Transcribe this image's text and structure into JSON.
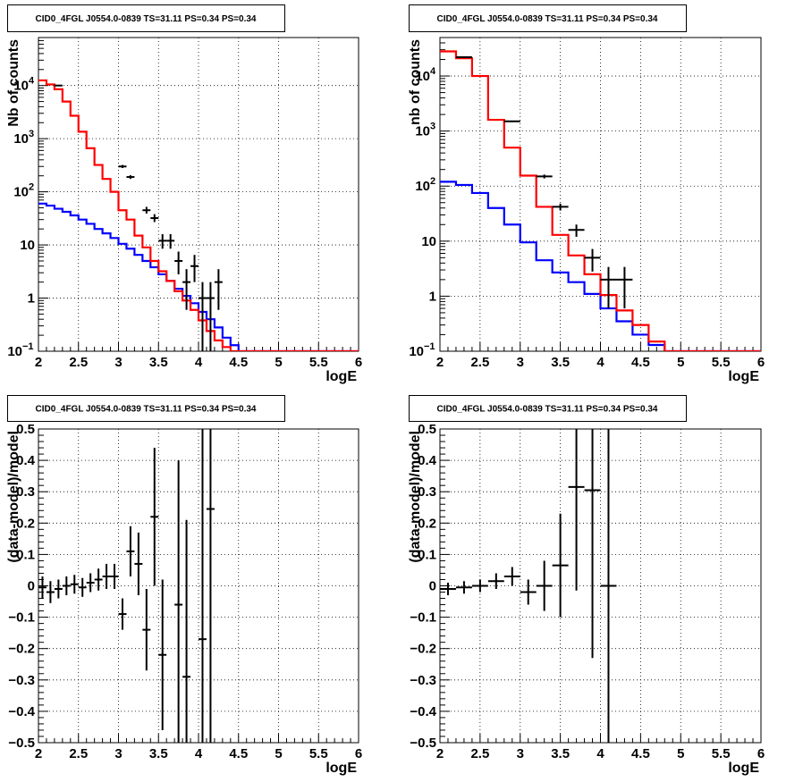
{
  "panels": [
    {
      "title": "CID0_4FGL J0554.0-0839 TS=31.11 PS=0.34 PS=0.34",
      "kind": "counts",
      "xlabel": "logE",
      "ylabel": "Nb of counts",
      "xlim": [
        2,
        6
      ],
      "ylim": [
        0.1,
        80000
      ],
      "ylog": true,
      "x_ticks": [
        "2",
        "2.5",
        "3",
        "3.5",
        "4",
        "4.5",
        "5",
        "5.5",
        "6"
      ],
      "y_ticks": [
        {
          "v": 0.1,
          "base": "10",
          "exp": "−1"
        },
        {
          "v": 1,
          "label": "1"
        },
        {
          "v": 10,
          "label": "10"
        },
        {
          "v": 100,
          "base": "10",
          "exp": "2"
        },
        {
          "v": 1000,
          "base": "10",
          "exp": "3"
        },
        {
          "v": 10000,
          "base": "10",
          "exp": "4"
        }
      ],
      "bin_width": 0.1,
      "red_model": [
        12500,
        10500,
        8500,
        5000,
        2700,
        1350,
        660,
        320,
        175,
        100,
        45,
        30,
        15,
        9,
        5,
        3.2,
        2.1,
        1.35,
        0.9,
        0.6,
        0.38,
        0.24,
        0.16,
        0.12,
        0.1,
        0.1,
        0.1,
        0.1,
        0.1,
        0.1,
        0.1,
        0.1,
        0.1,
        0.1,
        0.1,
        0.1,
        0.1,
        0.1,
        0.1,
        0.1
      ],
      "blue_model": [
        60,
        55,
        48,
        42,
        36,
        30,
        25,
        20,
        16.5,
        13.5,
        10.5,
        8.5,
        6.5,
        5,
        3.8,
        2.8,
        2.1,
        1.5,
        1.1,
        0.8,
        0.55,
        0.4,
        0.28,
        0.18,
        0.13,
        0.1,
        0.1,
        0.1,
        0.1,
        0.1,
        0.1,
        0.1,
        0.1,
        0.1,
        0.1,
        0.1,
        0.1,
        0.1,
        0.1,
        0.1
      ],
      "data_points": [
        {
          "x": 2.25,
          "y": 10000,
          "lo": 9800,
          "hi": 10200
        },
        {
          "x": 3.05,
          "y": 300,
          "lo": 280,
          "hi": 320
        },
        {
          "x": 3.15,
          "y": 190,
          "lo": 175,
          "hi": 205
        },
        {
          "x": 3.35,
          "y": 45,
          "lo": 39,
          "hi": 52
        },
        {
          "x": 3.45,
          "y": 32,
          "lo": 27,
          "hi": 38
        },
        {
          "x": 3.55,
          "y": 12,
          "lo": 8.5,
          "hi": 16
        },
        {
          "x": 3.65,
          "y": 12,
          "lo": 8.5,
          "hi": 16
        },
        {
          "x": 3.75,
          "y": 5,
          "lo": 2.8,
          "hi": 7.5
        },
        {
          "x": 3.85,
          "y": 2,
          "lo": 0.6,
          "hi": 3.5
        },
        {
          "x": 3.95,
          "y": 4,
          "lo": 2,
          "hi": 6.5
        },
        {
          "x": 4.05,
          "y": 1,
          "lo": 0.1,
          "hi": 2
        },
        {
          "x": 4.15,
          "y": 1,
          "lo": 0.1,
          "hi": 2
        },
        {
          "x": 4.25,
          "y": 2,
          "lo": 0.6,
          "hi": 3.5
        }
      ]
    },
    {
      "title": "CID0_4FGL J0554.0-0839 TS=31.11 PS=0.34 PS=0.34",
      "kind": "counts",
      "xlabel": "logE",
      "ylabel": "nb of counts",
      "xlim": [
        2,
        6
      ],
      "ylim": [
        0.1,
        50000
      ],
      "ylog": true,
      "x_ticks": [
        "2",
        "2.5",
        "3",
        "3.5",
        "4",
        "4.5",
        "5",
        "5.5",
        "6"
      ],
      "y_ticks": [
        {
          "v": 0.1,
          "base": "10",
          "exp": "−1"
        },
        {
          "v": 1,
          "label": "1"
        },
        {
          "v": 10,
          "label": "10"
        },
        {
          "v": 100,
          "base": "10",
          "exp": "2"
        },
        {
          "v": 1000,
          "base": "10",
          "exp": "3"
        },
        {
          "v": 10000,
          "base": "10",
          "exp": "4"
        }
      ],
      "bin_width": 0.2,
      "red_model": [
        28000,
        21000,
        10000,
        1600,
        500,
        155,
        42,
        13,
        5.5,
        2.5,
        1.05,
        0.55,
        0.3,
        0.15,
        0.1,
        0.1,
        0.1,
        0.1,
        0.1,
        0.1
      ],
      "blue_model": [
        120,
        105,
        75,
        40,
        20,
        9.5,
        4.5,
        2.7,
        1.8,
        1.1,
        0.6,
        0.35,
        0.2,
        0.13,
        0.1,
        0.1,
        0.1,
        0.1,
        0.1,
        0.1
      ],
      "data_points": [
        {
          "x": 2.3,
          "y": 22000,
          "lo": 21500,
          "hi": 22500
        },
        {
          "x": 2.9,
          "y": 1500,
          "lo": 1450,
          "hi": 1550
        },
        {
          "x": 3.3,
          "y": 150,
          "lo": 138,
          "hi": 162
        },
        {
          "x": 3.5,
          "y": 42,
          "lo": 36,
          "hi": 48
        },
        {
          "x": 3.7,
          "y": 16,
          "lo": 12,
          "hi": 20
        },
        {
          "x": 3.9,
          "y": 5,
          "lo": 2.8,
          "hi": 7.2
        },
        {
          "x": 4.1,
          "y": 2,
          "lo": 0.6,
          "hi": 3.4
        },
        {
          "x": 4.3,
          "y": 2,
          "lo": 0.6,
          "hi": 3.4
        }
      ]
    },
    {
      "title": "CID0_4FGL J0554.0-0839 TS=31.11 PS=0.34 PS=0.34",
      "kind": "residual",
      "xlabel": "logE",
      "ylabel": "(data-model)/model",
      "xlim": [
        2,
        6
      ],
      "ylim": [
        -0.5,
        0.5
      ],
      "ylog": false,
      "x_ticks": [
        "2",
        "2.5",
        "3",
        "3.5",
        "4",
        "4.5",
        "5",
        "5.5",
        "6"
      ],
      "y_ticks": [
        "−0.5",
        "−0.4",
        "−0.3",
        "−0.2",
        "−0.1",
        "0",
        "0.1",
        "0.2",
        "0.3",
        "0.4",
        "0.5"
      ],
      "bin_width": 0.1,
      "data_points": [
        {
          "x": 2.05,
          "y": -0.005,
          "err": 0.035
        },
        {
          "x": 2.15,
          "y": -0.02,
          "err": 0.035
        },
        {
          "x": 2.25,
          "y": -0.01,
          "err": 0.03
        },
        {
          "x": 2.35,
          "y": 0.0,
          "err": 0.03
        },
        {
          "x": 2.45,
          "y": 0.005,
          "err": 0.03
        },
        {
          "x": 2.55,
          "y": -0.005,
          "err": 0.03
        },
        {
          "x": 2.65,
          "y": 0.01,
          "err": 0.03
        },
        {
          "x": 2.75,
          "y": 0.02,
          "err": 0.035
        },
        {
          "x": 2.85,
          "y": 0.03,
          "err": 0.04
        },
        {
          "x": 2.95,
          "y": 0.03,
          "err": 0.04
        },
        {
          "x": 3.05,
          "y": -0.09,
          "err": 0.05
        },
        {
          "x": 3.15,
          "y": 0.11,
          "err": 0.08
        },
        {
          "x": 3.25,
          "y": 0.07,
          "err": 0.1
        },
        {
          "x": 3.35,
          "y": -0.14,
          "err": 0.13
        },
        {
          "x": 3.45,
          "y": 0.22,
          "err": 0.22
        },
        {
          "x": 3.55,
          "y": -0.22,
          "err": 0.24
        },
        {
          "x": 3.75,
          "y": -0.06,
          "err": 0.46
        },
        {
          "x": 3.85,
          "y": -0.29,
          "err": 0.5
        },
        {
          "x": 4.05,
          "y": -0.17,
          "err": 0.9
        },
        {
          "x": 4.15,
          "y": 0.245,
          "err": 0.9
        }
      ]
    },
    {
      "title": "CID0_4FGL J0554.0-0839 TS=31.11 PS=0.34 PS=0.34",
      "kind": "residual",
      "xlabel": "logE",
      "ylabel": "(data-model)/model",
      "xlim": [
        2,
        6
      ],
      "ylim": [
        -0.5,
        0.5
      ],
      "ylog": false,
      "x_ticks": [
        "2",
        "2.5",
        "3",
        "3.5",
        "4",
        "4.5",
        "5",
        "5.5",
        "6"
      ],
      "y_ticks": [
        "−0.5",
        "−0.4",
        "−0.3",
        "−0.2",
        "−0.1",
        "0",
        "0.1",
        "0.2",
        "0.3",
        "0.4",
        "0.5"
      ],
      "bin_width": 0.2,
      "data_points": [
        {
          "x": 2.1,
          "y": -0.01,
          "err": 0.02
        },
        {
          "x": 2.3,
          "y": -0.005,
          "err": 0.02
        },
        {
          "x": 2.5,
          "y": 0.0,
          "err": 0.02
        },
        {
          "x": 2.7,
          "y": 0.015,
          "err": 0.025
        },
        {
          "x": 2.9,
          "y": 0.03,
          "err": 0.03
        },
        {
          "x": 3.1,
          "y": -0.02,
          "err": 0.04
        },
        {
          "x": 3.3,
          "y": 0.0,
          "err": 0.08
        },
        {
          "x": 3.5,
          "y": 0.065,
          "err": 0.165
        },
        {
          "x": 3.7,
          "y": 0.315,
          "err": 0.33
        },
        {
          "x": 3.9,
          "y": 0.305,
          "err": 0.535
        },
        {
          "x": 4.1,
          "y": 0.0,
          "err": 0.9
        }
      ]
    }
  ],
  "colors": {
    "red_model": "#ff0000",
    "blue_model": "#0000ff",
    "data": "#000000",
    "grid": "#000000"
  },
  "chart_data": [
    {
      "type": "line",
      "title": "CID0_4FGL J0554.0-0839 TS=31.11 PS=0.34 PS=0.34",
      "xlabel": "logE",
      "ylabel": "Nb of counts",
      "xlim": [
        2,
        6
      ],
      "ylim": [
        0.1,
        80000
      ],
      "yscale": "log",
      "grid": true,
      "series": [
        {
          "values": [
            12500,
            10500,
            8500,
            5000,
            2700,
            1350,
            660,
            320,
            175,
            100,
            45,
            30,
            15,
            9,
            5,
            3.2,
            2.1,
            1.35,
            0.9,
            0.6,
            0.38,
            0.24,
            0.16,
            0.12,
            0.1
          ]
        },
        {
          "values": [
            60,
            55,
            48,
            42,
            36,
            30,
            25,
            20,
            16.5,
            13.5,
            10.5,
            8.5,
            6.5,
            5,
            3.8,
            2.8,
            2.1,
            1.5,
            1.1,
            0.8,
            0.55,
            0.4,
            0.28,
            0.18,
            0.13
          ]
        }
      ]
    },
    {
      "type": "line",
      "title": "CID0_4FGL J0554.0-0839 TS=31.11 PS=0.34 PS=0.34",
      "xlabel": "logE",
      "ylabel": "nb of counts",
      "xlim": [
        2,
        6
      ],
      "ylim": [
        0.1,
        50000
      ],
      "yscale": "log",
      "grid": true,
      "series": [
        {
          "values": [
            28000,
            21000,
            10000,
            1600,
            500,
            155,
            42,
            13,
            5.5,
            2.5,
            1.05,
            0.55,
            0.3,
            0.15
          ]
        },
        {
          "values": [
            120,
            105,
            75,
            40,
            20,
            9.5,
            4.5,
            2.7,
            1.8,
            1.1,
            0.6,
            0.35,
            0.2,
            0.13
          ]
        }
      ]
    },
    {
      "type": "scatter",
      "title": "CID0_4FGL J0554.0-0839 TS=31.11 PS=0.34 PS=0.34",
      "xlabel": "logE",
      "ylabel": "(data-model)/model",
      "xlim": [
        2,
        6
      ],
      "ylim": [
        -0.5,
        0.5
      ],
      "grid": true
    },
    {
      "type": "scatter",
      "title": "CID0_4FGL J0554.0-0839 TS=31.11 PS=0.34 PS=0.34",
      "xlabel": "logE",
      "ylabel": "(data-model)/model",
      "xlim": [
        2,
        6
      ],
      "ylim": [
        -0.5,
        0.5
      ],
      "grid": true
    }
  ]
}
